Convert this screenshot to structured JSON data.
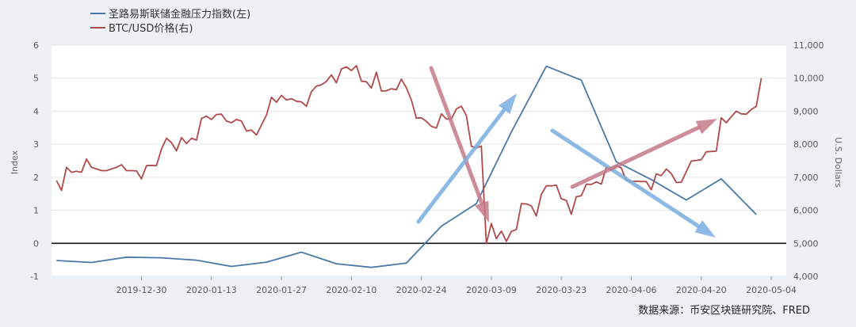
{
  "chart_data": {
    "type": "line",
    "ylabel_left": "Index",
    "ylabel_right": "U.S. Dollars",
    "y_left_range": [
      -1,
      6
    ],
    "y_left_ticks": [
      "-1",
      "0",
      "1",
      "2",
      "3",
      "4",
      "5",
      "6"
    ],
    "y_right_range": [
      4000,
      11000
    ],
    "y_right_ticks": [
      "4,000",
      "5,000",
      "6,000",
      "7,000",
      "8,000",
      "9,000",
      "10,000",
      "11,000"
    ],
    "x_ticks": [
      "2019-12-30",
      "2020-01-13",
      "2020-01-27",
      "2020-02-10",
      "2020-02-24",
      "2020-03-09",
      "2020-03-23",
      "2020-04-06",
      "2020-04-20",
      "2020-05-04"
    ],
    "grid": "horizontal",
    "legend_position": "top-left",
    "series": [
      {
        "name": "圣路易斯联储金融压力指数(左)",
        "axis": "left",
        "color": "#4a78a8",
        "x": [
          "2019-12-13",
          "2019-12-20",
          "2019-12-27",
          "2020-01-03",
          "2020-01-10",
          "2020-01-17",
          "2020-01-24",
          "2020-01-31",
          "2020-02-07",
          "2020-02-14",
          "2020-02-21",
          "2020-02-28",
          "2020-03-06",
          "2020-03-13",
          "2020-03-20",
          "2020-03-27",
          "2020-04-03",
          "2020-04-10",
          "2020-04-17",
          "2020-04-24",
          "2020-05-01"
        ],
        "values": [
          -0.52,
          -0.58,
          -0.42,
          -0.44,
          -0.51,
          -0.7,
          -0.57,
          -0.27,
          -0.62,
          -0.73,
          -0.6,
          0.52,
          1.2,
          3.37,
          5.36,
          4.94,
          2.47,
          1.93,
          1.31,
          1.95,
          0.87
        ]
      },
      {
        "name": "BTC/USD价格(右)",
        "axis": "right",
        "color": "#b04a4a",
        "x_start": "2019-12-13",
        "values": [
          6900,
          6600,
          7300,
          7150,
          7180,
          7150,
          7550,
          7300,
          7250,
          7200,
          7200,
          7250,
          7300,
          7380,
          7200,
          7200,
          7190,
          6950,
          7350,
          7360,
          7350,
          7850,
          8180,
          8050,
          7800,
          8200,
          8020,
          8180,
          8120,
          8780,
          8850,
          8750,
          8900,
          8910,
          8700,
          8650,
          8750,
          8700,
          8400,
          8430,
          8280,
          8580,
          8880,
          9420,
          9270,
          9480,
          9340,
          9380,
          9300,
          9280,
          9150,
          9590,
          9760,
          9800,
          9900,
          10100,
          9860,
          10280,
          10340,
          10230,
          10380,
          9910,
          9890,
          9700,
          10180,
          9610,
          9620,
          9680,
          9650,
          9970,
          9710,
          9340,
          8790,
          8800,
          8690,
          8540,
          8490,
          8920,
          8760,
          8760,
          9070,
          9150,
          8870,
          7940,
          7890,
          7940,
          4990,
          5600,
          5140,
          5370,
          5060,
          5360,
          5420,
          6200,
          6190,
          6130,
          5830,
          6480,
          6740,
          6740,
          6760,
          6350,
          6300,
          5880,
          6410,
          6440,
          6790,
          6780,
          6860,
          6790,
          7300,
          7200,
          7350,
          7280,
          6900,
          6870,
          6880,
          6870,
          6870,
          6620,
          7100,
          7050,
          7250,
          7110,
          6840,
          6850,
          7170,
          7490,
          7510,
          7530,
          7770,
          7780,
          7790,
          8800,
          8650,
          8830,
          9000,
          8920,
          8910,
          9050,
          9150,
          10000
        ]
      }
    ]
  },
  "source": "数据来源：币安区块链研究院、FRED"
}
